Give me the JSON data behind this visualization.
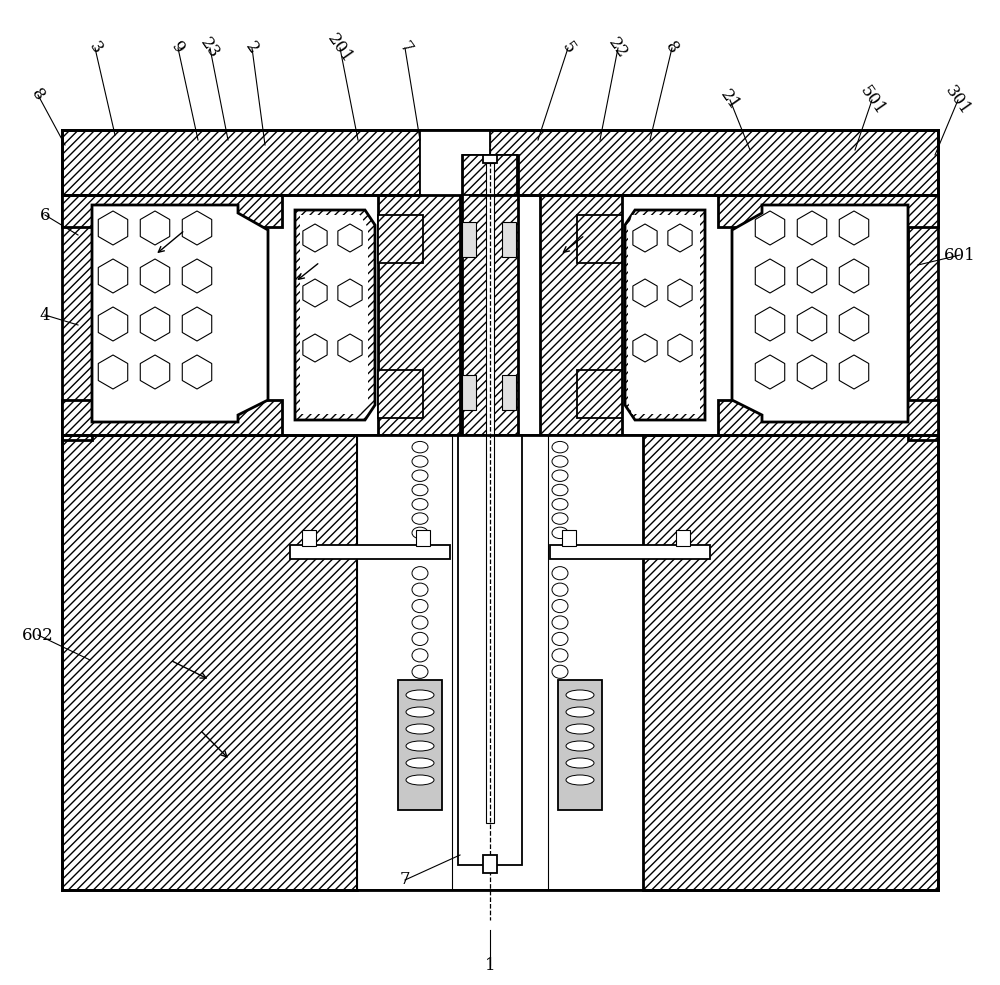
{
  "bg_color": "#ffffff",
  "figsize": [
    10.0,
    9.85
  ],
  "dpi": 100,
  "labels_top": [
    [
      "8",
      38,
      95,
      65,
      145
    ],
    [
      "3",
      95,
      48,
      115,
      135
    ],
    [
      "9",
      178,
      48,
      198,
      140
    ],
    [
      "23",
      210,
      48,
      228,
      140
    ],
    [
      "2",
      252,
      48,
      265,
      145
    ],
    [
      "201",
      340,
      48,
      358,
      140
    ],
    [
      "7",
      405,
      48,
      420,
      140
    ],
    [
      "5",
      568,
      48,
      538,
      140
    ],
    [
      "22",
      618,
      48,
      600,
      140
    ],
    [
      "8",
      672,
      48,
      650,
      140
    ],
    [
      "21",
      730,
      100,
      750,
      150
    ],
    [
      "501",
      872,
      100,
      855,
      150
    ],
    [
      "301",
      958,
      100,
      935,
      155
    ]
  ],
  "labels_side": [
    [
      "6",
      45,
      215,
      78,
      235
    ],
    [
      "4",
      45,
      315,
      78,
      325
    ],
    [
      "601",
      960,
      255,
      918,
      265
    ],
    [
      "602",
      38,
      635,
      90,
      660
    ]
  ],
  "labels_bottom": [
    [
      "7",
      405,
      880,
      460,
      855
    ],
    [
      "1",
      490,
      965,
      490,
      930
    ]
  ]
}
